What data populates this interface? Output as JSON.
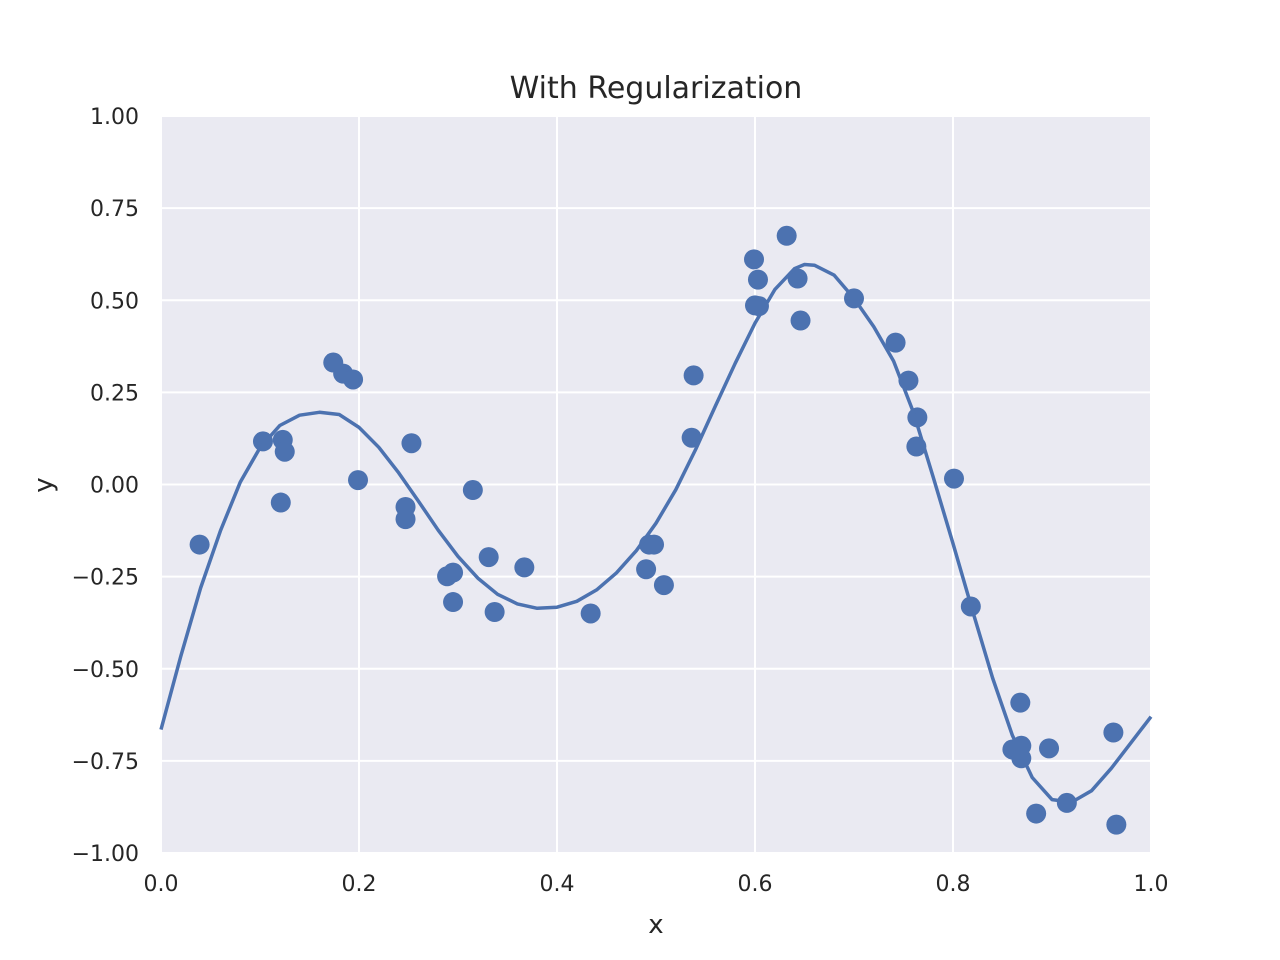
{
  "chart_data": {
    "type": "scatter",
    "title": "With Regularization",
    "xlabel": "x",
    "ylabel": "y",
    "xlim": [
      0.0,
      1.0
    ],
    "ylim": [
      -1.0,
      1.0
    ],
    "grid": true,
    "x_ticks": [
      "0.0",
      "0.2",
      "0.4",
      "0.6",
      "0.8",
      "1.0"
    ],
    "y_ticks": [
      "−1.00",
      "−0.75",
      "−0.50",
      "−0.25",
      "0.00",
      "0.25",
      "0.50",
      "0.75",
      "1.00"
    ],
    "colors": {
      "plot_background": "#eaeaf2",
      "grid": "#ffffff",
      "series": "#4c72b0",
      "text": "#262626"
    },
    "series": [
      {
        "type": "scatter",
        "points": [
          [
            0.039,
            -0.163
          ],
          [
            0.103,
            0.117
          ],
          [
            0.121,
            -0.049
          ],
          [
            0.123,
            0.121
          ],
          [
            0.125,
            0.089
          ],
          [
            0.174,
            0.331
          ],
          [
            0.184,
            0.301
          ],
          [
            0.194,
            0.285
          ],
          [
            0.199,
            0.012
          ],
          [
            0.247,
            -0.061
          ],
          [
            0.247,
            -0.094
          ],
          [
            0.253,
            0.112
          ],
          [
            0.289,
            -0.249
          ],
          [
            0.295,
            -0.239
          ],
          [
            0.295,
            -0.319
          ],
          [
            0.315,
            -0.015
          ],
          [
            0.331,
            -0.197
          ],
          [
            0.337,
            -0.346
          ],
          [
            0.367,
            -0.225
          ],
          [
            0.434,
            -0.35
          ],
          [
            0.49,
            -0.23
          ],
          [
            0.493,
            -0.163
          ],
          [
            0.498,
            -0.163
          ],
          [
            0.508,
            -0.273
          ],
          [
            0.536,
            0.127
          ],
          [
            0.538,
            0.296
          ],
          [
            0.599,
            0.611
          ],
          [
            0.6,
            0.486
          ],
          [
            0.603,
            0.556
          ],
          [
            0.604,
            0.484
          ],
          [
            0.632,
            0.675
          ],
          [
            0.643,
            0.559
          ],
          [
            0.646,
            0.445
          ],
          [
            0.7,
            0.505
          ],
          [
            0.742,
            0.385
          ],
          [
            0.755,
            0.282
          ],
          [
            0.764,
            0.182
          ],
          [
            0.763,
            0.103
          ],
          [
            0.801,
            0.016
          ],
          [
            0.818,
            -0.331
          ],
          [
            0.86,
            -0.719
          ],
          [
            0.868,
            -0.592
          ],
          [
            0.869,
            -0.709
          ],
          [
            0.869,
            -0.743
          ],
          [
            0.884,
            -0.893
          ],
          [
            0.897,
            -0.716
          ],
          [
            0.915,
            -0.864
          ],
          [
            0.962,
            -0.673
          ],
          [
            0.965,
            -0.923
          ]
        ]
      },
      {
        "type": "line",
        "points": [
          [
            0.0,
            -0.665
          ],
          [
            0.02,
            -0.466
          ],
          [
            0.04,
            -0.281
          ],
          [
            0.06,
            -0.126
          ],
          [
            0.08,
            0.006
          ],
          [
            0.1,
            0.1
          ],
          [
            0.12,
            0.16
          ],
          [
            0.14,
            0.188
          ],
          [
            0.16,
            0.196
          ],
          [
            0.18,
            0.19
          ],
          [
            0.2,
            0.155
          ],
          [
            0.22,
            0.101
          ],
          [
            0.24,
            0.032
          ],
          [
            0.26,
            -0.045
          ],
          [
            0.28,
            -0.124
          ],
          [
            0.3,
            -0.195
          ],
          [
            0.32,
            -0.254
          ],
          [
            0.34,
            -0.298
          ],
          [
            0.36,
            -0.324
          ],
          [
            0.38,
            -0.336
          ],
          [
            0.4,
            -0.333
          ],
          [
            0.42,
            -0.317
          ],
          [
            0.44,
            -0.286
          ],
          [
            0.46,
            -0.24
          ],
          [
            0.48,
            -0.18
          ],
          [
            0.5,
            -0.105
          ],
          [
            0.52,
            -0.014
          ],
          [
            0.54,
            0.095
          ],
          [
            0.56,
            0.213
          ],
          [
            0.58,
            0.329
          ],
          [
            0.6,
            0.438
          ],
          [
            0.62,
            0.529
          ],
          [
            0.64,
            0.586
          ],
          [
            0.65,
            0.597
          ],
          [
            0.66,
            0.595
          ],
          [
            0.68,
            0.568
          ],
          [
            0.7,
            0.505
          ],
          [
            0.72,
            0.428
          ],
          [
            0.74,
            0.335
          ],
          [
            0.76,
            0.196
          ],
          [
            0.78,
            0.02
          ],
          [
            0.8,
            -0.16
          ],
          [
            0.82,
            -0.345
          ],
          [
            0.84,
            -0.525
          ],
          [
            0.86,
            -0.681
          ],
          [
            0.88,
            -0.795
          ],
          [
            0.9,
            -0.855
          ],
          [
            0.92,
            -0.862
          ],
          [
            0.94,
            -0.831
          ],
          [
            0.96,
            -0.77
          ],
          [
            0.98,
            -0.7
          ],
          [
            1.0,
            -0.63
          ]
        ]
      }
    ]
  }
}
